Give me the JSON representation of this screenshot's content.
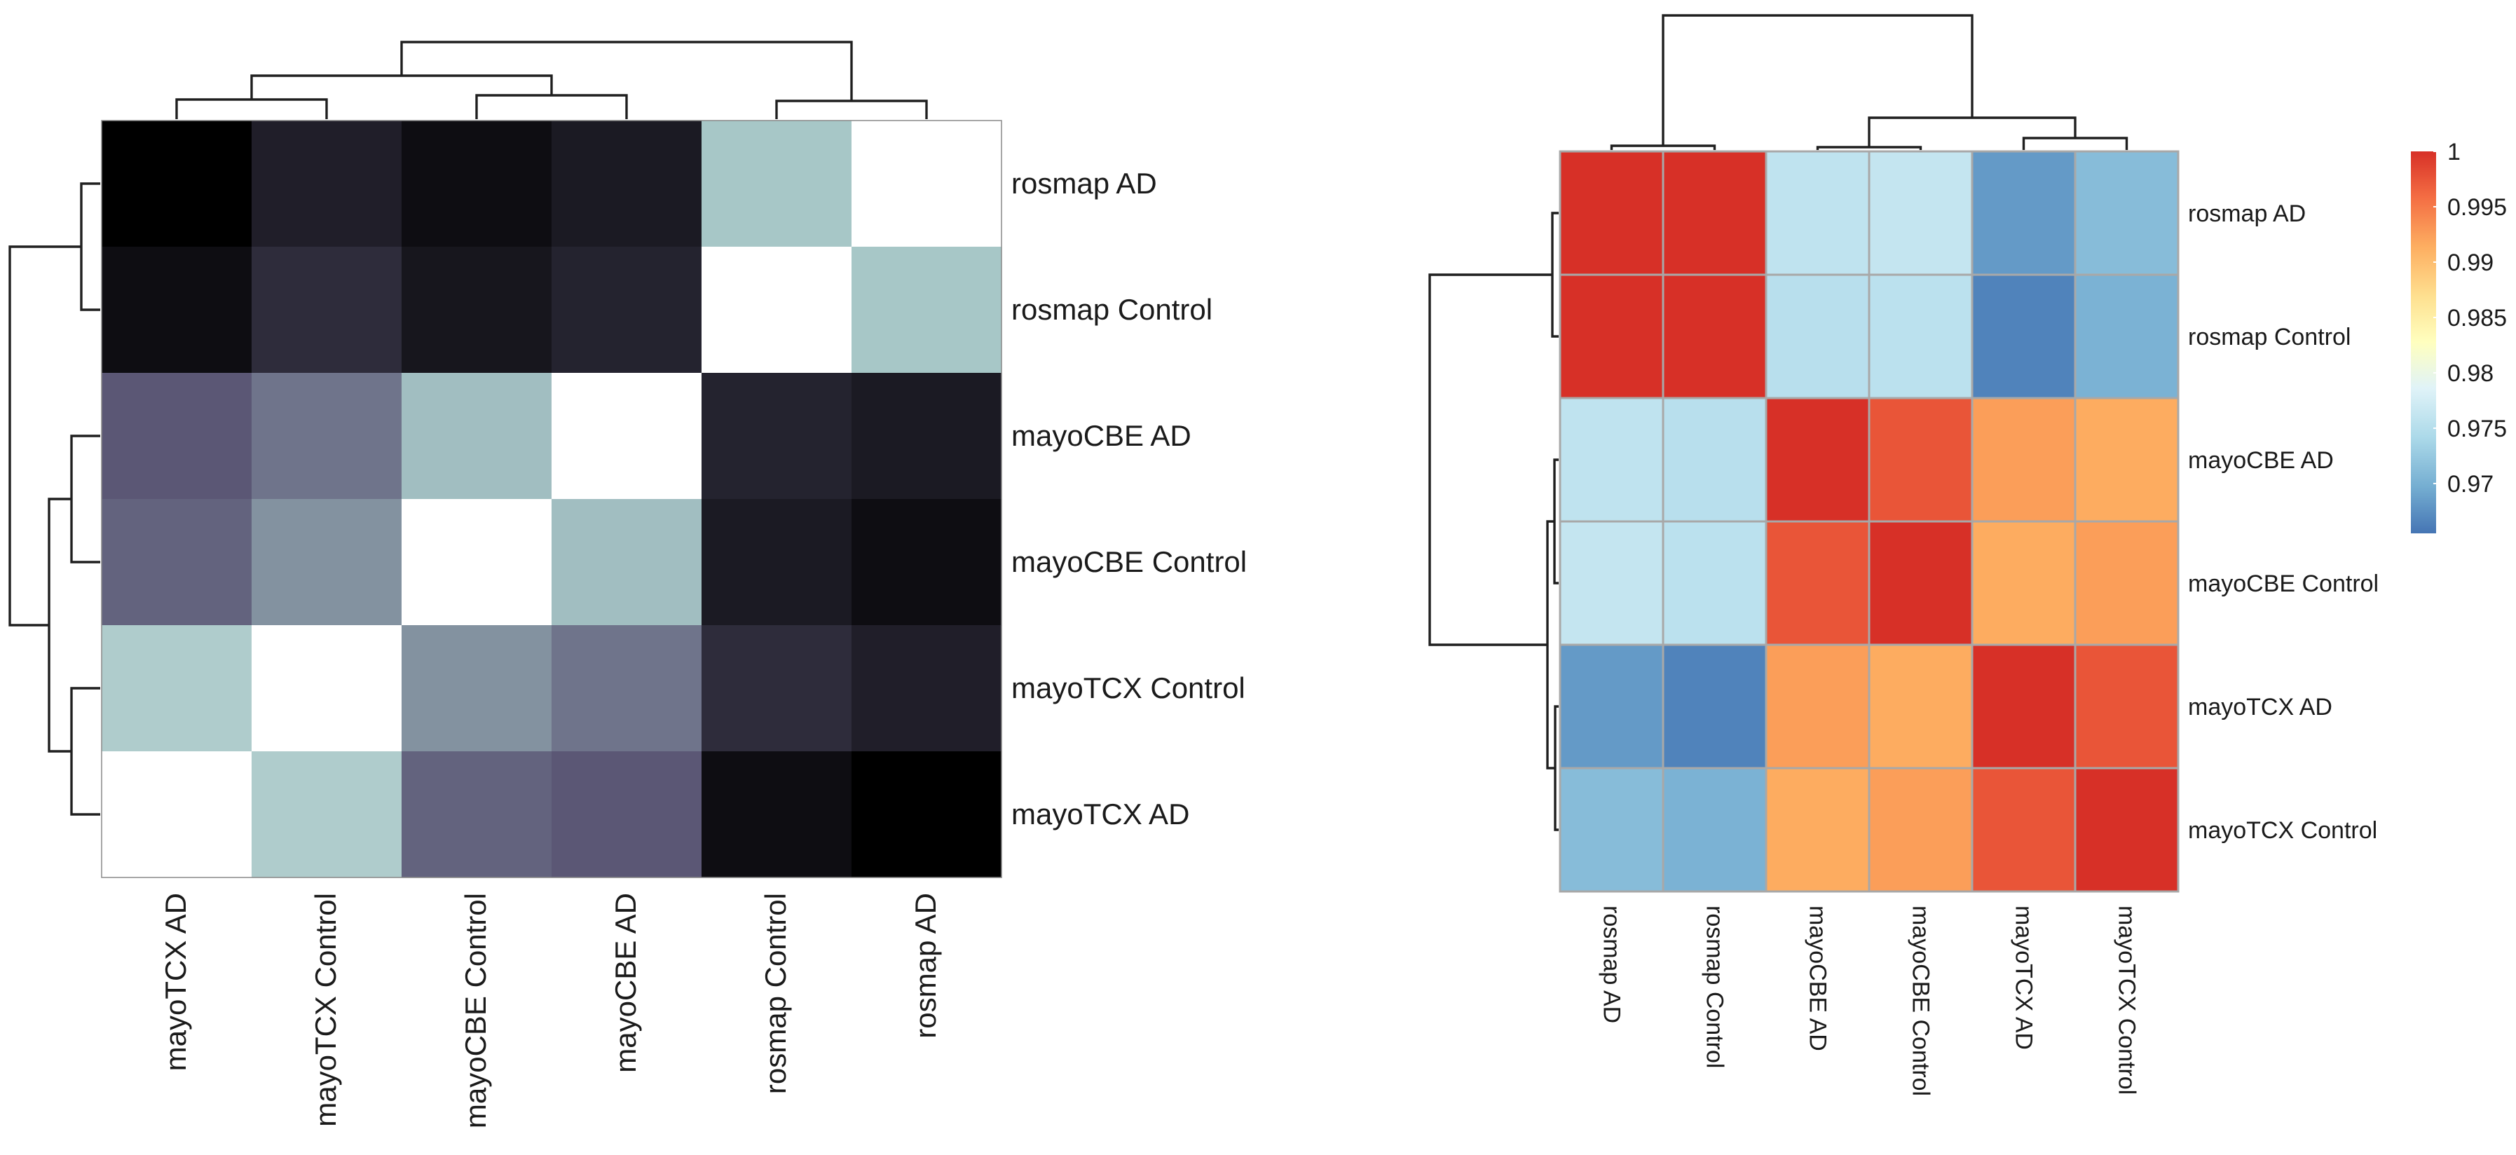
{
  "chart_data": [
    {
      "type": "heatmap",
      "title": "",
      "colormap": "bone",
      "colors": {
        "low": "#000000",
        "mid": "#5b5775",
        "high": "#a7c7c7",
        "max": "#ffffff"
      },
      "row_labels": [
        "rosmap AD",
        "rosmap Control",
        "mayoCBE AD",
        "mayoCBE Control",
        "mayoTCX Control",
        "mayoTCX AD"
      ],
      "col_labels": [
        "mayoTCX AD",
        "mayoTCX Control",
        "mayoCBE Control",
        "mayoCBE AD",
        "rosmap Control",
        "rosmap AD"
      ],
      "values": [
        [
          0.0,
          0.14,
          0.06,
          0.12,
          0.78,
          1.0
        ],
        [
          0.06,
          0.2,
          0.1,
          0.16,
          1.0,
          0.78
        ],
        [
          0.4,
          0.5,
          0.75,
          1.0,
          0.16,
          0.12
        ],
        [
          0.44,
          0.6,
          1.0,
          0.75,
          0.12,
          0.06
        ],
        [
          0.8,
          1.0,
          0.6,
          0.5,
          0.2,
          0.14
        ],
        [
          1.0,
          0.8,
          0.44,
          0.4,
          0.06,
          0.0
        ]
      ],
      "row_dendrogram": "((rosmap AD, rosmap Control), ((mayoCBE AD, mayoCBE Control), (mayoTCX Control, mayoTCX AD)))",
      "col_dendrogram": "(((mayoTCX AD, mayoTCX Control), (mayoCBE Control, mayoCBE AD)), (rosmap Control, rosmap AD))"
    },
    {
      "type": "heatmap",
      "title": "",
      "colormap": "RdYlBu_r",
      "colors": {
        "low": "#4575b4",
        "mid": "#ffffbf",
        "high": "#d73027"
      },
      "row_labels": [
        "rosmap AD",
        "rosmap Control",
        "mayoCBE AD",
        "mayoCBE Control",
        "mayoTCX AD",
        "mayoTCX Control"
      ],
      "col_labels": [
        "rosmap AD",
        "rosmap Control",
        "mayoCBE AD",
        "mayoCBE Control",
        "mayoTCX AD",
        "mayoTCX Control"
      ],
      "values": [
        [
          1.0,
          1.0,
          0.9758,
          0.9762,
          0.9682,
          0.9712
        ],
        [
          1.0,
          1.0,
          0.9752,
          0.9755,
          0.9665,
          0.9702
        ],
        [
          0.9758,
          0.9752,
          1.0,
          0.9975,
          0.9925,
          0.9915
        ],
        [
          0.9762,
          0.9755,
          0.9975,
          1.0,
          0.9915,
          0.9925
        ],
        [
          0.9682,
          0.9665,
          0.9925,
          0.9915,
          1.0,
          0.9975
        ],
        [
          0.9712,
          0.9702,
          0.9915,
          0.9925,
          0.9975,
          1.0
        ]
      ],
      "colorbar": {
        "min": 0.9655,
        "max": 1.0,
        "ticks": [
          1,
          0.995,
          0.99,
          0.985,
          0.98,
          0.975,
          0.97
        ]
      },
      "row_dendrogram": "((rosmap AD, rosmap Control), ((mayoCBE AD, mayoCBE Control), (mayoTCX AD, mayoTCX Control)))",
      "col_dendrogram": "((rosmap AD, rosmap Control), ((mayoCBE AD, mayoCBE Control), (mayoTCX AD, mayoTCX Control)))"
    }
  ]
}
